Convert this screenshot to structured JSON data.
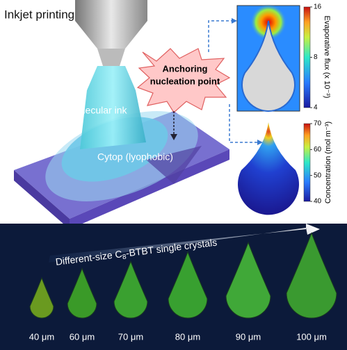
{
  "top_panel": {
    "title": "Inkjet printing",
    "callout": [
      "Anchoring",
      "nucleation point"
    ],
    "ink_label": "Molecular ink",
    "substrate_label": "Cytop (lyophobic)",
    "flux_map": {
      "colorbar_label": "Evaporative flux (x 10⁻³)",
      "ticks": [
        16,
        8,
        4
      ]
    },
    "concentration_map": {
      "colorbar_label": "Concentration (mol m⁻³)",
      "ticks": [
        70,
        60,
        50,
        40
      ]
    }
  },
  "bottom_panel": {
    "arrow_label": {
      "prefix": "Different-size C",
      "subscript": "8",
      "suffix": "-BTBT single crystals"
    },
    "sizes": [
      "40 μm",
      "60 μm",
      "70 μm",
      "80 μm",
      "90 μm",
      "100 μm"
    ]
  }
}
